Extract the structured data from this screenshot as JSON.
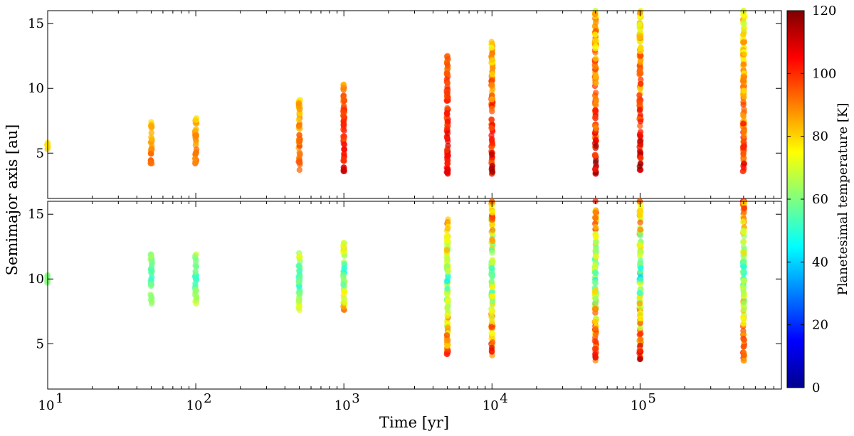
{
  "chart_data": {
    "type": "scatter",
    "x_scale": "log",
    "xlim": [
      10,
      900000
    ],
    "ylim": [
      1.5,
      16
    ],
    "grid": false,
    "shared_x": true,
    "xlabel": "Time [yr]",
    "ylabel": "Semimajor axis [au]",
    "x_tick_labels": [
      {
        "base": "10",
        "exp": "1",
        "value": 10
      },
      {
        "base": "10",
        "exp": "2",
        "value": 100
      },
      {
        "base": "10",
        "exp": "3",
        "value": 1000
      },
      {
        "base": "10",
        "exp": "4",
        "value": 10000
      },
      {
        "base": "10",
        "exp": "5",
        "value": 100000
      }
    ],
    "y_ticks": [
      5,
      10,
      15
    ],
    "colorbar": {
      "label": "Planetesimal temperature [K]",
      "range": [
        0,
        120
      ],
      "ticks": [
        0,
        20,
        40,
        60,
        80,
        100,
        120
      ],
      "colormap": "jet"
    },
    "panels": [
      {
        "name": "top",
        "columns": [
          {
            "time": 10,
            "a_min": 5.3,
            "a_max": 5.8,
            "t_low": 76,
            "t_high": 80
          },
          {
            "time": 50,
            "a_min": 4.2,
            "a_max": 7.4,
            "t_low": 78,
            "t_high": 92
          },
          {
            "time": 100,
            "a_min": 4.2,
            "a_max": 7.7,
            "t_low": 78,
            "t_high": 92
          },
          {
            "time": 500,
            "a_min": 3.7,
            "a_max": 9.1,
            "t_low": 74,
            "t_high": 98
          },
          {
            "time": 1000,
            "a_min": 3.6,
            "a_max": 10.3,
            "t_low": 84,
            "t_high": 106
          },
          {
            "time": 5000,
            "a_min": 3.4,
            "a_max": 12.5,
            "t_low": 86,
            "t_high": 108
          },
          {
            "time": 10000,
            "a_min": 3.4,
            "a_max": 13.6,
            "t_low": 70,
            "t_high": 108
          },
          {
            "time": 50000,
            "a_min": 3.4,
            "a_max": 16.0,
            "t_low": 66,
            "t_high": 110
          },
          {
            "time": 100000,
            "a_min": 3.7,
            "a_max": 16.0,
            "t_low": 64,
            "t_high": 108
          },
          {
            "time": 500000,
            "a_min": 3.6,
            "a_max": 16.0,
            "t_low": 64,
            "t_high": 102
          }
        ]
      },
      {
        "name": "bottom",
        "columns": [
          {
            "time": 10,
            "a_min": 9.7,
            "a_max": 10.3,
            "t_low": 58,
            "t_high": 62
          },
          {
            "time": 50,
            "a_min": 8.1,
            "a_max": 11.9,
            "t_low": 52,
            "t_high": 66
          },
          {
            "time": 100,
            "a_min": 8.1,
            "a_max": 11.9,
            "t_low": 52,
            "t_high": 70
          },
          {
            "time": 500,
            "a_min": 7.6,
            "a_max": 12.0,
            "t_low": 52,
            "t_high": 74
          },
          {
            "time": 1000,
            "a_min": 7.6,
            "a_max": 12.8,
            "t_low": 54,
            "t_high": 88
          },
          {
            "time": 5000,
            "a_min": 4.2,
            "a_max": 14.6,
            "t_low": 56,
            "t_high": 102
          },
          {
            "time": 10000,
            "a_min": 4.1,
            "a_max": 16.0,
            "t_low": 56,
            "t_high": 106
          },
          {
            "time": 50000,
            "a_min": 3.7,
            "a_max": 16.0,
            "t_low": 56,
            "t_high": 110
          },
          {
            "time": 100000,
            "a_min": 3.8,
            "a_max": 16.0,
            "t_low": 52,
            "t_high": 110
          },
          {
            "time": 500000,
            "a_min": 3.7,
            "a_max": 16.0,
            "t_low": 58,
            "t_high": 104
          }
        ]
      }
    ]
  }
}
